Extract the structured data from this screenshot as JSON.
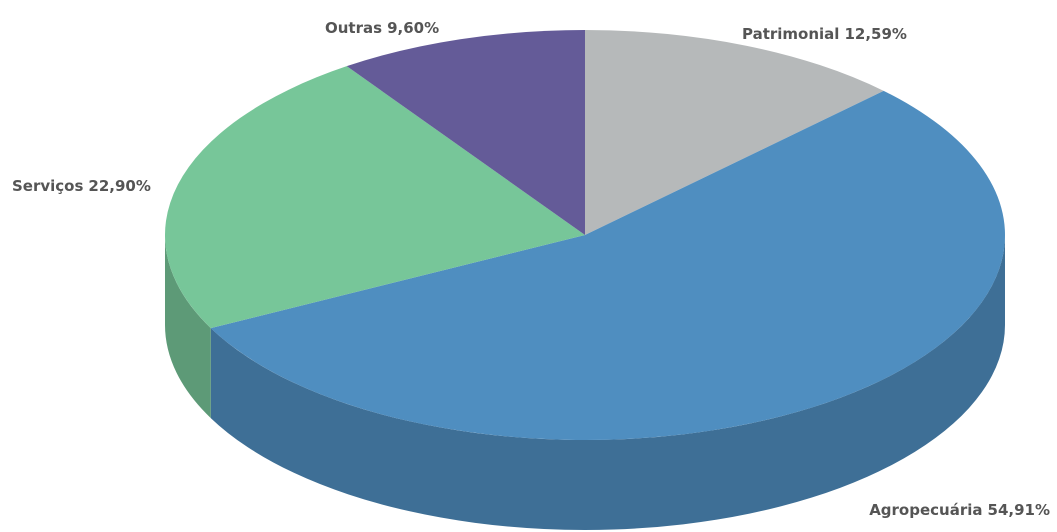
{
  "chart_data": {
    "type": "pie",
    "categories": [
      "Patrimonial",
      "Agropecuária",
      "Serviços",
      "Outras"
    ],
    "values": [
      12.59,
      54.91,
      22.9,
      9.6
    ],
    "value_labels": [
      "12,59%",
      "54,91%",
      "22,90%",
      "9,60%"
    ],
    "colors": [
      "#b6b9ba",
      "#4f8ec0",
      "#77c699",
      "#645b98"
    ]
  }
}
